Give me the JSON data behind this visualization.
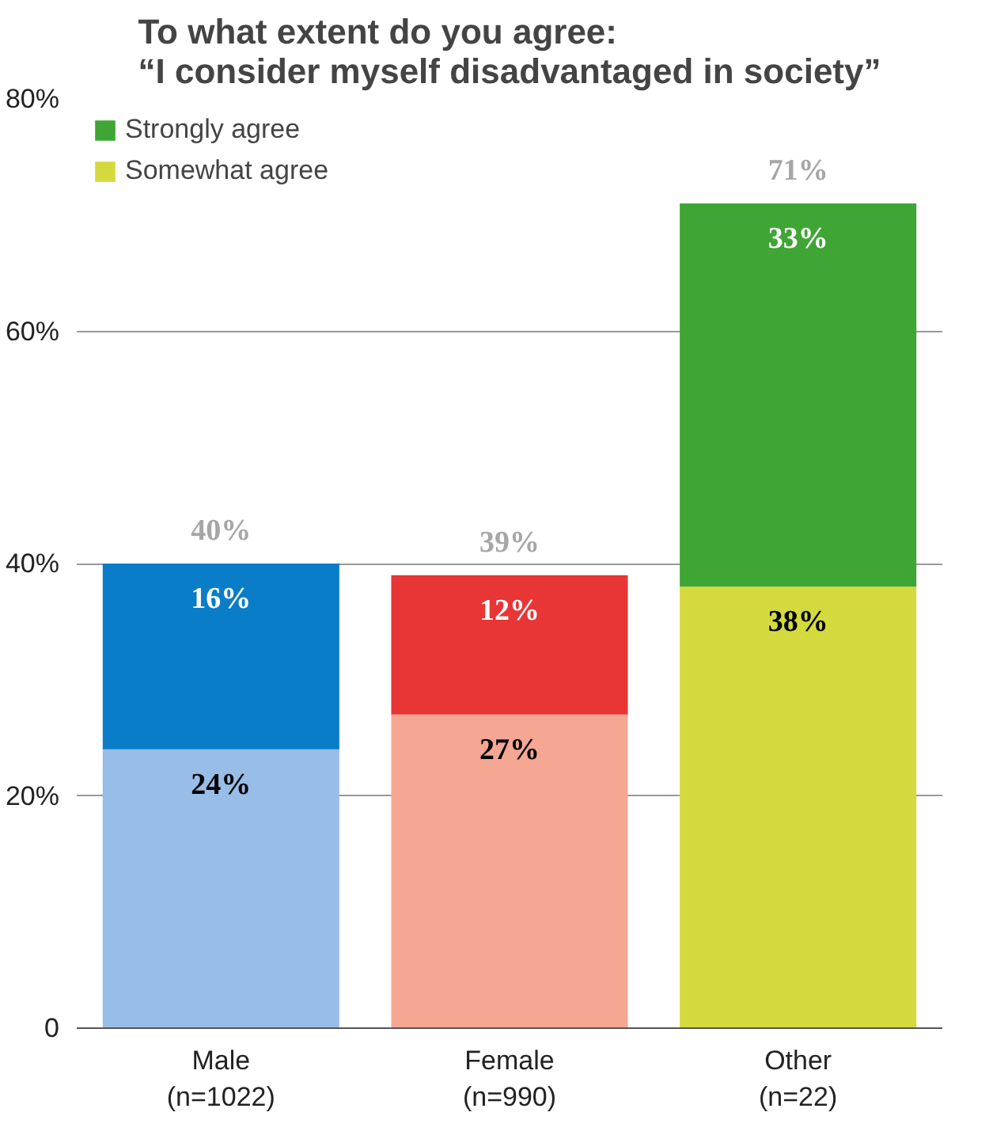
{
  "chart_data": {
    "type": "bar",
    "title": "To what extent do you agree:\n“I consider myself disadvantaged in society”",
    "categories": [
      "Male\n(n=1022)",
      "Female\n(n=990)",
      "Other\n(n=22)"
    ],
    "stacked": true,
    "ylim": [
      0,
      80
    ],
    "yticks": [
      0,
      {
        "value": 20,
        "label": "20%"
      },
      {
        "value": 40,
        "label": "40%"
      },
      {
        "value": 60,
        "label": "60%"
      },
      {
        "value": 80,
        "label": "80%"
      }
    ],
    "grid": "y",
    "legend": "top left",
    "series": [
      {
        "name": "Somewhat agree",
        "color": "#d4da3e",
        "colors": [
          "#98bde6",
          "#f5a793",
          "#d4da3e"
        ],
        "values": [
          24,
          27,
          38
        ],
        "value_labels": [
          "24%",
          "27%",
          "38%"
        ]
      },
      {
        "name": "Strongly agree",
        "color": "#3fa535",
        "colors": [
          "#0a7dc8",
          "#e83535",
          "#3fa535"
        ],
        "values": [
          16,
          12,
          33
        ],
        "value_labels": [
          "16%",
          "12%",
          "33%"
        ]
      }
    ],
    "totals": [
      "40%",
      "39%",
      "71%"
    ]
  }
}
